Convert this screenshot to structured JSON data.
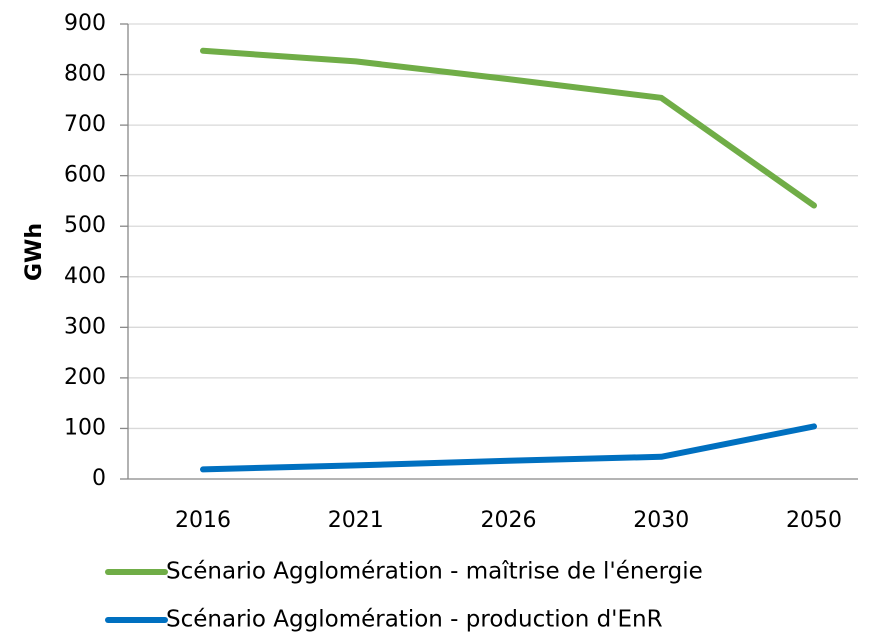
{
  "chart_data": {
    "type": "line",
    "y_label": "GWh",
    "categories": [
      "2016",
      "2021",
      "2026",
      "2030",
      "2050"
    ],
    "series": [
      {
        "name": "Scénario Agglomération - maîtrise de l'énergie",
        "color": "#70ad47",
        "values": [
          847,
          826,
          791,
          754,
          541
        ]
      },
      {
        "name": "Scénario Agglomération - production d'EnR",
        "color": "#0070c0",
        "values": [
          19,
          27,
          36,
          44,
          104
        ]
      }
    ],
    "ylim": [
      0,
      900
    ],
    "yticks": [
      0,
      100,
      200,
      300,
      400,
      500,
      600,
      700,
      800,
      900
    ],
    "grid": true,
    "legend": "bottom"
  }
}
